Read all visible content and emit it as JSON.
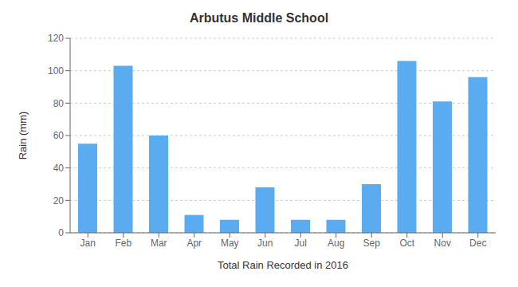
{
  "chart_data": {
    "type": "bar",
    "title": "Arbutus Middle School",
    "xlabel": "Total Rain Recorded in 2016",
    "ylabel": "Rain (mm)",
    "categories": [
      "Jan",
      "Feb",
      "Mar",
      "Apr",
      "May",
      "Jun",
      "Jul",
      "Aug",
      "Sep",
      "Oct",
      "Nov",
      "Dec"
    ],
    "values": [
      55,
      103,
      60,
      11,
      8,
      28,
      8,
      8,
      30,
      106,
      81,
      96
    ],
    "color": "#5aabf0",
    "ylim": [
      0,
      120
    ],
    "yticks": [
      0,
      20,
      40,
      60,
      80,
      100,
      120
    ],
    "grid": true
  }
}
